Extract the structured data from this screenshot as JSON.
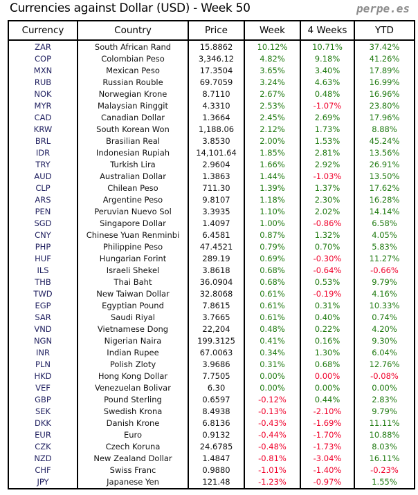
{
  "title": "Currencies against Dollar (USD) - Week 50",
  "brand": "perpe.es",
  "colors": {
    "positive": "#1f7a10",
    "negative": "#f0002a"
  },
  "columns": [
    "Currency",
    "Country",
    "Price",
    "Week",
    "4 Weeks",
    "YTD"
  ],
  "rows": [
    {
      "cur": "ZAR",
      "country": "South African Rand",
      "price": "15.8862",
      "week": "10.12%",
      "w4": "10.71%",
      "ytd": "37.42%"
    },
    {
      "cur": "COP",
      "country": "Colombian Peso",
      "price": "3,346.12",
      "week": "4.82%",
      "w4": "9.18%",
      "ytd": "41.26%"
    },
    {
      "cur": "MXN",
      "country": "Mexican Peso",
      "price": "17.3504",
      "week": "3.65%",
      "w4": "3.40%",
      "ytd": "17.89%"
    },
    {
      "cur": "RUB",
      "country": "Russian Rouble",
      "price": "69.7059",
      "week": "3.24%",
      "w4": "4.63%",
      "ytd": "16.99%"
    },
    {
      "cur": "NOK",
      "country": "Norwegian Krone",
      "price": "8.7110",
      "week": "2.67%",
      "w4": "0.48%",
      "ytd": "16.96%"
    },
    {
      "cur": "MYR",
      "country": "Malaysian Ringgit",
      "price": "4.3310",
      "week": "2.53%",
      "w4": "-1.07%",
      "ytd": "23.80%"
    },
    {
      "cur": "CAD",
      "country": "Canadian Dollar",
      "price": "1.3664",
      "week": "2.45%",
      "w4": "2.69%",
      "ytd": "17.96%"
    },
    {
      "cur": "KRW",
      "country": "South Korean Won",
      "price": "1,188.06",
      "week": "2.12%",
      "w4": "1.73%",
      "ytd": "8.88%"
    },
    {
      "cur": "BRL",
      "country": "Brasilian Real",
      "price": "3.8530",
      "week": "2.00%",
      "w4": "1.53%",
      "ytd": "45.24%"
    },
    {
      "cur": "IDR",
      "country": "Indonesian Rupiah",
      "price": "14,101.64",
      "week": "1.85%",
      "w4": "2.81%",
      "ytd": "13.56%"
    },
    {
      "cur": "TRY",
      "country": "Turkish Lira",
      "price": "2.9604",
      "week": "1.66%",
      "w4": "2.92%",
      "ytd": "26.91%"
    },
    {
      "cur": "AUD",
      "country": "Australian Dollar",
      "price": "1.3863",
      "week": "1.44%",
      "w4": "-1.03%",
      "ytd": "13.50%"
    },
    {
      "cur": "CLP",
      "country": "Chilean Peso",
      "price": "711.30",
      "week": "1.39%",
      "w4": "1.37%",
      "ytd": "17.62%"
    },
    {
      "cur": "ARS",
      "country": "Argentine Peso",
      "price": "9.8107",
      "week": "1.18%",
      "w4": "2.30%",
      "ytd": "16.28%"
    },
    {
      "cur": "PEN",
      "country": "Peruvian Nuevo Sol",
      "price": "3.3935",
      "week": "1.10%",
      "w4": "2.02%",
      "ytd": "14.14%"
    },
    {
      "cur": "SGD",
      "country": "Singapore Dollar",
      "price": "1.4097",
      "week": "1.00%",
      "w4": "-0.86%",
      "ytd": "6.58%"
    },
    {
      "cur": "CNY",
      "country": "Chinese Yuan Renminbi",
      "price": "6.4581",
      "week": "0.87%",
      "w4": "1.32%",
      "ytd": "4.05%"
    },
    {
      "cur": "PHP",
      "country": "Philippine Peso",
      "price": "47.4521",
      "week": "0.79%",
      "w4": "0.70%",
      "ytd": "5.83%"
    },
    {
      "cur": "HUF",
      "country": "Hungarian Forint",
      "price": "289.19",
      "week": "0.69%",
      "w4": "-0.30%",
      "ytd": "11.27%"
    },
    {
      "cur": "ILS",
      "country": "Israeli Shekel",
      "price": "3.8618",
      "week": "0.68%",
      "w4": "-0.64%",
      "ytd": "-0.66%"
    },
    {
      "cur": "THB",
      "country": "Thai Baht",
      "price": "36.0904",
      "week": "0.68%",
      "w4": "0.53%",
      "ytd": "9.79%"
    },
    {
      "cur": "TWD",
      "country": "New Taiwan Dollar",
      "price": "32.8068",
      "week": "0.61%",
      "w4": "-0.19%",
      "ytd": "4.16%"
    },
    {
      "cur": "EGP",
      "country": "Egyptian Pound",
      "price": "7.8615",
      "week": "0.61%",
      "w4": "0.31%",
      "ytd": "10.33%"
    },
    {
      "cur": "SAR",
      "country": "Saudi Riyal",
      "price": "3.7665",
      "week": "0.61%",
      "w4": "0.40%",
      "ytd": "0.74%"
    },
    {
      "cur": "VND",
      "country": "Vietnamese Dong",
      "price": "22,204",
      "week": "0.48%",
      "w4": "0.22%",
      "ytd": "4.20%"
    },
    {
      "cur": "NGN",
      "country": "Nigerian Naira",
      "price": "199.3125",
      "week": "0.41%",
      "w4": "0.16%",
      "ytd": "9.30%"
    },
    {
      "cur": "INR",
      "country": "Indian Rupee",
      "price": "67.0063",
      "week": "0.34%",
      "w4": "1.30%",
      "ytd": "6.04%"
    },
    {
      "cur": "PLN",
      "country": "Polish Zloty",
      "price": "3.9686",
      "week": "0.31%",
      "w4": "0.68%",
      "ytd": "12.76%"
    },
    {
      "cur": "HKD",
      "country": "Hong Kong Dollar",
      "price": "7.7505",
      "week": "0.00%",
      "w4": "0.00%",
      "w4_negative": true,
      "ytd": "-0.08%"
    },
    {
      "cur": "VEF",
      "country": "Venezuelan Bolivar",
      "price": "6.30",
      "week": "0.00%",
      "w4": "0.00%",
      "ytd": "0.00%"
    },
    {
      "cur": "GBP",
      "country": "Pound Sterling",
      "price": "0.6597",
      "week": "-0.12%",
      "w4": "0.44%",
      "ytd": "2.83%"
    },
    {
      "cur": "SEK",
      "country": "Swedish Krona",
      "price": "8.4938",
      "week": "-0.13%",
      "w4": "-2.10%",
      "ytd": "9.79%"
    },
    {
      "cur": "DKK",
      "country": "Danish Krone",
      "price": "6.8136",
      "week": "-0.43%",
      "w4": "-1.69%",
      "ytd": "11.11%"
    },
    {
      "cur": "EUR",
      "country": "Euro",
      "price": "0.9132",
      "week": "-0.44%",
      "w4": "-1.70%",
      "ytd": "10.88%"
    },
    {
      "cur": "CZK",
      "country": "Czech Koruna",
      "price": "24.6785",
      "week": "-0.48%",
      "w4": "-1.73%",
      "ytd": "8.03%"
    },
    {
      "cur": "NZD",
      "country": "New Zealand Dollar",
      "price": "1.4847",
      "week": "-0.81%",
      "w4": "-3.04%",
      "ytd": "16.11%"
    },
    {
      "cur": "CHF",
      "country": "Swiss Franc",
      "price": "0.9880",
      "week": "-1.01%",
      "w4": "-1.40%",
      "ytd": "-0.23%"
    },
    {
      "cur": "JPY",
      "country": "Japanese Yen",
      "price": "121.48",
      "week": "-1.23%",
      "w4": "-0.97%",
      "ytd": "1.55%"
    }
  ]
}
